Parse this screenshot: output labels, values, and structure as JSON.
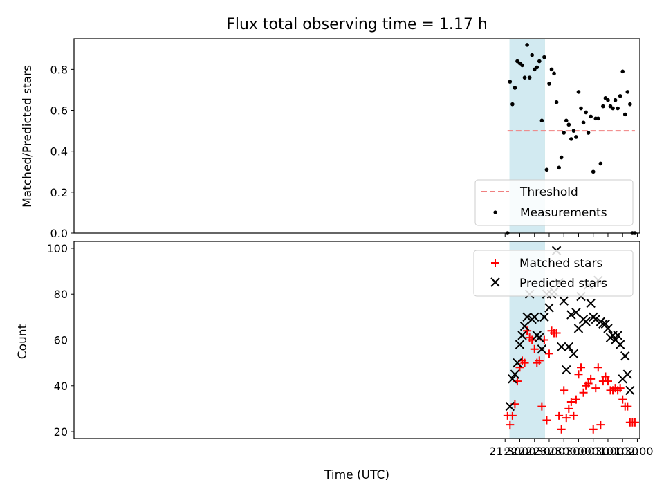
{
  "chart_data": [
    {
      "type": "scatter",
      "title": "Flux total observing time = 1.17 h",
      "xlabel": "",
      "ylabel": "Matched/Predicted stars",
      "ylim": [
        0,
        0.95
      ],
      "yticks": [
        0.0,
        0.2,
        0.4,
        0.6,
        0.8
      ],
      "ytick_labels": [
        "0.0",
        "0.2",
        "0.4",
        "0.6",
        "0.8"
      ],
      "shaded_interval": [
        "21:40",
        "22:50"
      ],
      "legend_position": "lower-right",
      "colors": {
        "threshold": "#f08080",
        "measurements": "#000000",
        "shade": "#add8e6"
      },
      "threshold": {
        "name": "Threshold",
        "y": 0.5,
        "x_range": [
          "21:35",
          "01:55"
        ]
      },
      "measurements": {
        "name": "Measurements",
        "x": [
          "21:35",
          "21:40",
          "21:45",
          "21:50",
          "21:55",
          "22:00",
          "22:05",
          "22:10",
          "22:15",
          "22:20",
          "22:25",
          "22:30",
          "22:35",
          "22:40",
          "22:45",
          "22:50",
          "22:55",
          "23:00",
          "23:05",
          "23:10",
          "23:15",
          "23:20",
          "23:25",
          "23:30",
          "23:35",
          "23:40",
          "23:45",
          "23:50",
          "23:55",
          "00:00",
          "00:05",
          "00:10",
          "00:15",
          "00:20",
          "00:25",
          "00:30",
          "00:35",
          "00:40",
          "00:45",
          "00:50",
          "00:55",
          "01:00",
          "01:05",
          "01:10",
          "01:15",
          "01:20",
          "01:25",
          "01:30",
          "01:35",
          "01:40",
          "01:45",
          "01:50",
          "01:55"
        ],
        "y": [
          0.0,
          0.74,
          0.63,
          0.71,
          0.84,
          0.83,
          0.82,
          0.76,
          0.92,
          0.76,
          0.87,
          0.8,
          0.81,
          0.84,
          0.55,
          0.86,
          0.31,
          0.73,
          0.8,
          0.78,
          0.64,
          0.32,
          0.37,
          0.49,
          0.55,
          0.53,
          0.46,
          0.5,
          0.47,
          0.69,
          0.61,
          0.54,
          0.59,
          0.49,
          0.57,
          0.3,
          0.56,
          0.56,
          0.34,
          0.62,
          0.66,
          0.65,
          0.62,
          0.61,
          0.65,
          0.61,
          0.67,
          0.79,
          0.58,
          0.69,
          0.63,
          0.0,
          0.0
        ]
      }
    },
    {
      "type": "scatter",
      "title": "",
      "xlabel": "Time (UTC)",
      "ylabel": "Count",
      "ylim": [
        17,
        103
      ],
      "yticks": [
        20,
        40,
        60,
        80,
        100
      ],
      "ytick_labels": [
        "20",
        "40",
        "60",
        "80",
        "100"
      ],
      "xticks": [
        "21:30",
        "22:00",
        "22:30",
        "23:00",
        "23:30",
        "00:00",
        "00:30",
        "01:00",
        "01:30",
        "02:00"
      ],
      "shaded_interval": [
        "21:40",
        "22:50"
      ],
      "legend_position": "top-right",
      "colors": {
        "matched": "#ff0000",
        "predicted": "#000000",
        "shade": "#add8e6"
      },
      "matched": {
        "name": "Matched stars",
        "x": [
          "21:35",
          "21:40",
          "21:45",
          "21:50",
          "21:55",
          "22:00",
          "22:05",
          "22:10",
          "22:15",
          "22:20",
          "22:25",
          "22:30",
          "22:35",
          "22:40",
          "22:45",
          "22:50",
          "22:55",
          "23:00",
          "23:05",
          "23:10",
          "23:15",
          "23:20",
          "23:25",
          "23:30",
          "23:35",
          "23:40",
          "23:45",
          "23:50",
          "23:55",
          "00:00",
          "00:05",
          "00:10",
          "00:15",
          "00:20",
          "00:25",
          "00:30",
          "00:35",
          "00:40",
          "00:45",
          "00:50",
          "00:55",
          "01:00",
          "01:05",
          "01:10",
          "01:15",
          "01:20",
          "01:25",
          "01:30",
          "01:35",
          "01:40",
          "01:45",
          "01:50",
          "01:55"
        ],
        "y": [
          27,
          23,
          27,
          32,
          42,
          48,
          51,
          50,
          64,
          61,
          60,
          56,
          50,
          51,
          31,
          60,
          25,
          54,
          64,
          63,
          63,
          27,
          21,
          38,
          26,
          30,
          33,
          27,
          34,
          45,
          48,
          37,
          40,
          41,
          43,
          21,
          39,
          48,
          23,
          42,
          44,
          42,
          38,
          38,
          39,
          38,
          39,
          34,
          31,
          31,
          24,
          24,
          24
        ]
      },
      "predicted": {
        "name": "Predicted stars",
        "x": [
          "21:40",
          "21:45",
          "21:50",
          "21:55",
          "22:00",
          "22:05",
          "22:10",
          "22:15",
          "22:20",
          "22:25",
          "22:30",
          "22:35",
          "22:40",
          "22:45",
          "22:50",
          "22:55",
          "23:00",
          "23:05",
          "23:10",
          "23:15",
          "23:20",
          "23:25",
          "23:30",
          "23:35",
          "23:40",
          "23:45",
          "23:50",
          "23:55",
          "00:00",
          "00:05",
          "00:10",
          "00:15",
          "00:20",
          "00:25",
          "00:30",
          "00:35",
          "00:40",
          "00:45",
          "00:50",
          "00:55",
          "01:00",
          "01:05",
          "01:10",
          "01:15",
          "01:20",
          "01:25",
          "01:30",
          "01:35",
          "01:40",
          "01:45"
        ],
        "y": [
          31,
          43,
          45,
          50,
          58,
          62,
          66,
          70,
          80,
          69,
          70,
          62,
          61,
          56,
          70,
          80,
          74,
          80,
          81,
          99,
          85,
          57,
          77,
          47,
          57,
          71,
          54,
          72,
          65,
          79,
          69,
          68,
          84,
          76,
          70,
          69,
          86,
          68,
          67,
          67,
          65,
          61,
          62,
          60,
          62,
          58,
          43,
          53,
          45,
          38
        ]
      }
    }
  ]
}
